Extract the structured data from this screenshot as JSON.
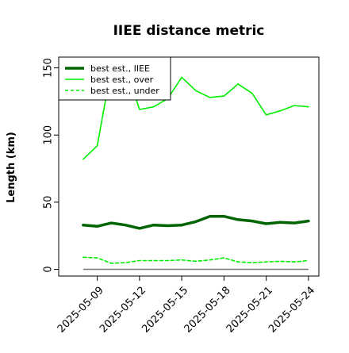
{
  "chart_data": {
    "type": "line",
    "title": "IIEE distance metric",
    "xlabel": "",
    "ylabel": "Length (km)",
    "x_ticks": [
      "2025-05-09",
      "2025-05-12",
      "2025-05-15",
      "2025-05-18",
      "2025-05-21",
      "2025-05-24"
    ],
    "y_ticks": [
      "0",
      "50",
      "100",
      "150"
    ],
    "ylim": [
      -5,
      158
    ],
    "xlim": [
      "2025-05-07",
      "2025-05-24"
    ],
    "x": [
      "2025-05-08",
      "2025-05-09",
      "2025-05-10",
      "2025-05-11",
      "2025-05-12",
      "2025-05-13",
      "2025-05-14",
      "2025-05-15",
      "2025-05-16",
      "2025-05-17",
      "2025-05-18",
      "2025-05-19",
      "2025-05-20",
      "2025-05-21",
      "2025-05-22",
      "2025-05-23",
      "2025-05-24"
    ],
    "series": [
      {
        "name": "best est., IIEE",
        "style": "solid-thick",
        "color": "#006400",
        "values": [
          33,
          32,
          34.5,
          33,
          30.5,
          33,
          32.5,
          33,
          35.5,
          39.5,
          39.5,
          37,
          36,
          34,
          35,
          34.5,
          36
        ]
      },
      {
        "name": "best est., over",
        "style": "solid",
        "color": "#00ee00",
        "values": [
          82,
          92,
          150,
          151,
          119,
          121,
          127,
          143,
          133,
          128,
          129,
          138,
          131,
          115,
          118,
          122,
          121
        ]
      },
      {
        "name": "best est., under",
        "style": "dashed",
        "color": "#00ee00",
        "values": [
          9,
          8.5,
          4.5,
          5,
          6.5,
          6.5,
          6.5,
          7,
          6,
          7,
          8.5,
          5.5,
          5,
          5.5,
          6,
          5.5,
          6.5
        ]
      }
    ],
    "reference_line": {
      "y": 0,
      "color": "#777777"
    },
    "legend": {
      "placement": "top-left"
    },
    "grid": false
  }
}
